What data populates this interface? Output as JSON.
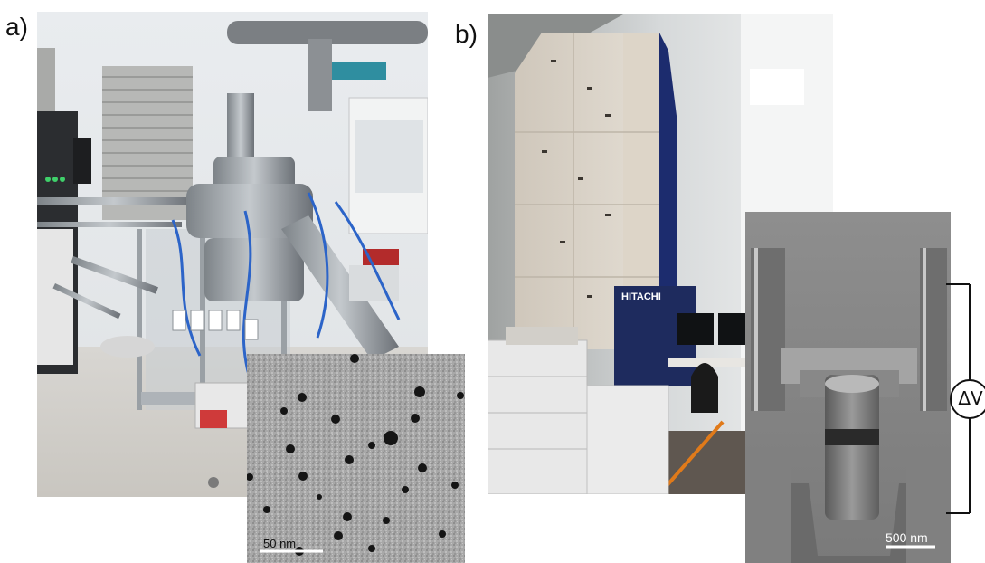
{
  "panel_a": {
    "label": "a)",
    "inset_scalebar": "50 nm"
  },
  "panel_b": {
    "label": "b)",
    "brand_text": "HITACHI",
    "inset_scalebar": "500 nm",
    "delta_v_label": "ΔV"
  }
}
